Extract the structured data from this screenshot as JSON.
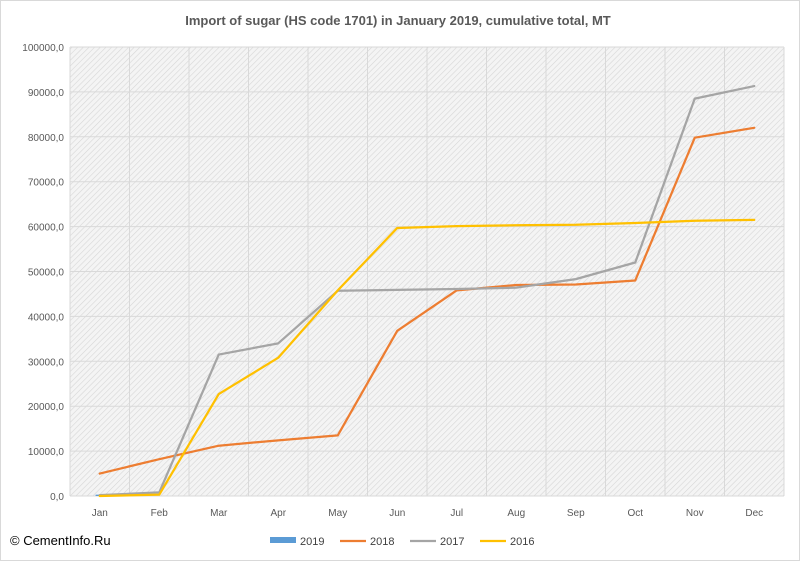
{
  "chart_data": {
    "type": "line",
    "title": "Import of sugar (HS code 1701)  in January 2019,  cumulative total, MT",
    "xlabel": "",
    "ylabel": "",
    "categories": [
      "Jan",
      "Feb",
      "Mar",
      "Apr",
      "May",
      "Jun",
      "Jul",
      "Aug",
      "Sep",
      "Oct",
      "Nov",
      "Dec"
    ],
    "ylim": [
      0,
      100000
    ],
    "yticks": [
      0,
      10000,
      20000,
      30000,
      40000,
      50000,
      60000,
      70000,
      80000,
      90000,
      100000
    ],
    "ytick_labels": [
      "0,0",
      "10000,0",
      "20000,0",
      "30000,0",
      "40000,0",
      "50000,0",
      "60000,0",
      "70000,0",
      "80000,0",
      "90000,0",
      "100000,0"
    ],
    "grid": true,
    "legend_position": "bottom",
    "series": [
      {
        "name": "2019",
        "kind": "bar",
        "color": "#5b9bd5",
        "values": [
          300,
          null,
          null,
          null,
          null,
          null,
          null,
          null,
          null,
          null,
          null,
          null
        ]
      },
      {
        "name": "2018",
        "kind": "line",
        "color": "#ed7d31",
        "values": [
          5000,
          8200,
          11200,
          12400,
          13500,
          36800,
          45800,
          47000,
          47100,
          48000,
          79800,
          82000
        ]
      },
      {
        "name": "2017",
        "kind": "line",
        "color": "#a5a5a5",
        "values": [
          200,
          800,
          31500,
          34000,
          45700,
          45900,
          46100,
          46400,
          48300,
          52000,
          88500,
          91300
        ]
      },
      {
        "name": "2016",
        "kind": "line",
        "color": "#ffc000",
        "values": [
          0,
          300,
          22700,
          30800,
          45800,
          59700,
          60100,
          60300,
          60400,
          60800,
          61300,
          61500
        ]
      }
    ]
  },
  "credit": "© CementInfo.Ru"
}
